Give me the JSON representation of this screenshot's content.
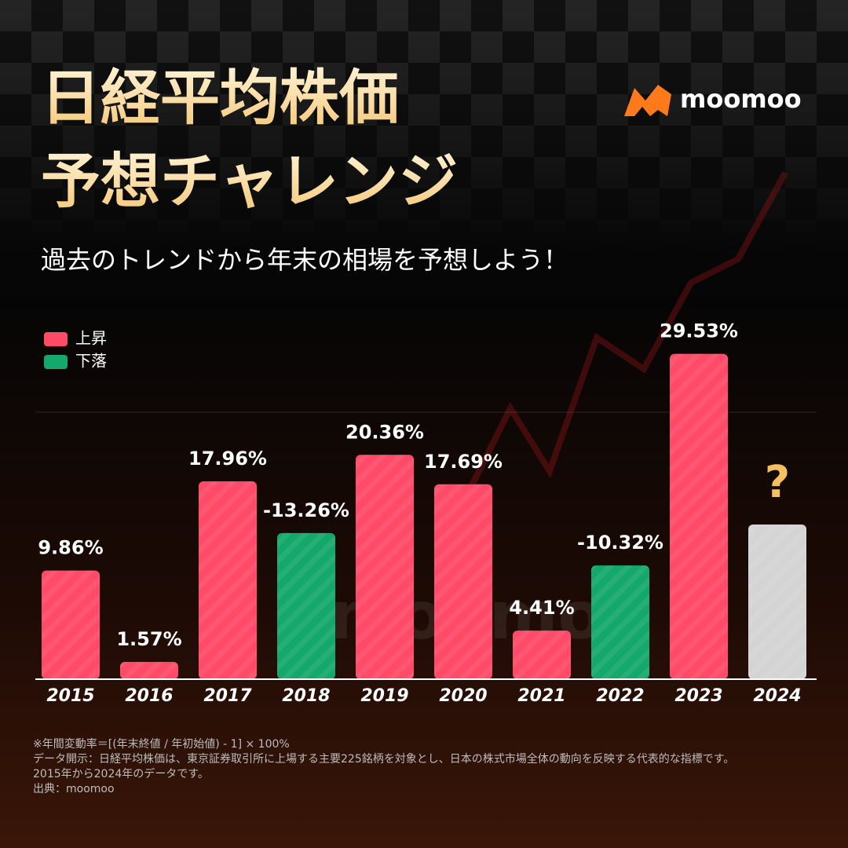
{
  "chart_data": {
    "type": "bar",
    "title": [
      "日経平均株価",
      "予想チャレンジ"
    ],
    "subtitle": "過去のトレンドから年末の相場を予想しよう！",
    "brand": "moomoo",
    "watermark": "moomoo",
    "legend": [
      {
        "name": "上昇",
        "color": "#ff4a68"
      },
      {
        "name": "下落",
        "color": "#14a86c"
      }
    ],
    "categories": [
      "2015",
      "2016",
      "2017",
      "2018",
      "2019",
      "2020",
      "2021",
      "2022",
      "2023",
      "2024"
    ],
    "values": [
      9.86,
      1.57,
      17.96,
      -13.26,
      20.36,
      17.69,
      4.41,
      -10.32,
      29.53,
      null
    ],
    "value_labels": [
      "9.86%",
      "1.57%",
      "17.96%",
      "-13.26%",
      "20.36%",
      "17.69%",
      "4.41%",
      "-10.32%",
      "29.53%",
      "?"
    ],
    "ylim": [
      0,
      30
    ],
    "notes": [
      "※年間変動率＝[(年末終値 / 年初始値) - 1] × 100%",
      "データ開示：日経平均株価は、東京証券取引所に上場する主要225銘柄を対象とし、日本の株式市場全体の動向を反映する代表的な指標です。",
      "2015年から2024年のデータです。",
      "出典：moomoo"
    ]
  }
}
